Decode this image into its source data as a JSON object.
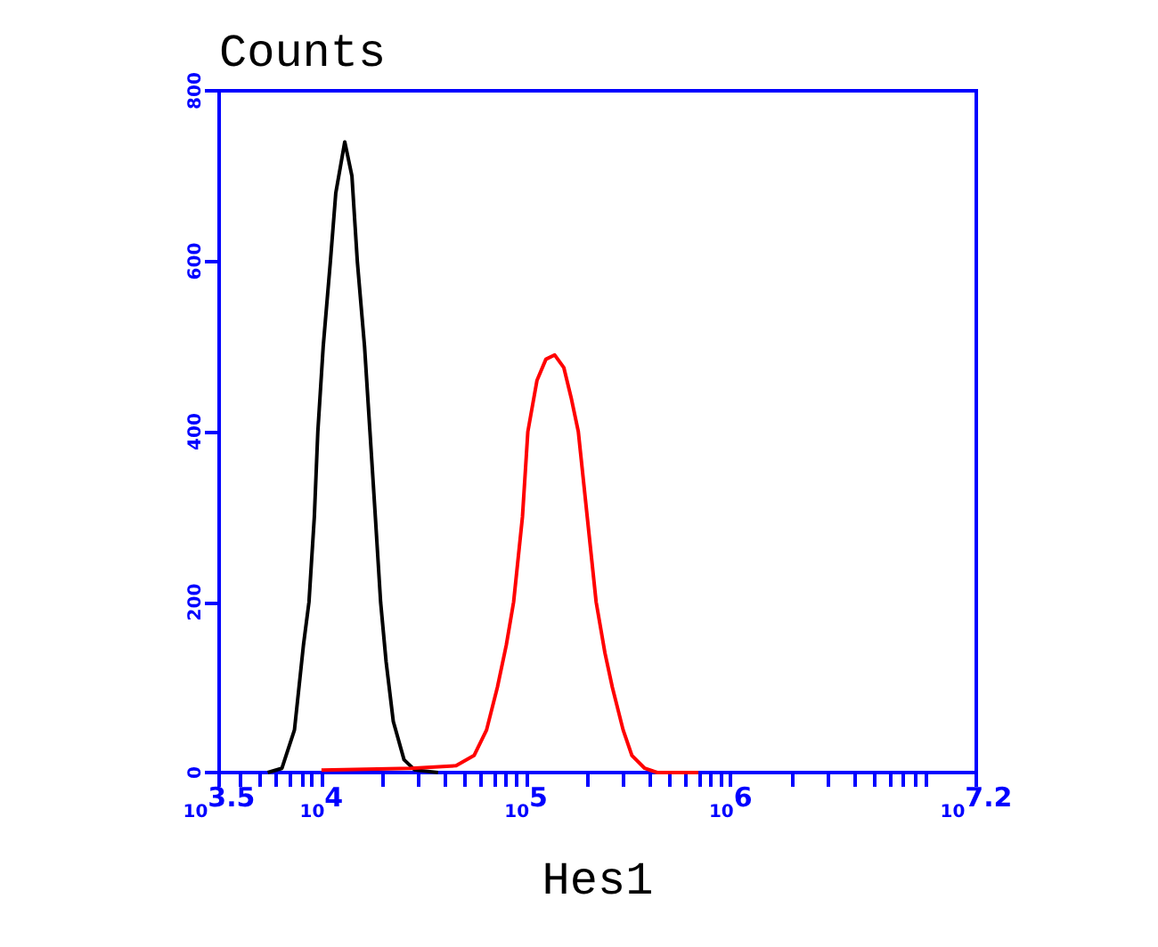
{
  "chart_data": {
    "type": "line",
    "ylabel": "Counts",
    "xlabel": "Hes1",
    "log": "x",
    "xlim": [
      3162,
      15850000
    ],
    "ylim": [
      0,
      800
    ],
    "yticks": [
      0,
      200,
      400,
      600,
      800
    ],
    "xticks": [
      {
        "value": 3162,
        "label": "10$^{3.5}$"
      },
      {
        "value": 4000,
        "label": null
      },
      {
        "value": 5000,
        "label": null
      },
      {
        "value": 6000,
        "label": null
      },
      {
        "value": 7000,
        "label": null
      },
      {
        "value": 8000,
        "label": null
      },
      {
        "value": 9000,
        "label": null
      },
      {
        "value": 10000,
        "label": "10$^{4}$"
      },
      {
        "value": 20000,
        "label": null
      },
      {
        "value": 30000,
        "label": null
      },
      {
        "value": 40000,
        "label": null
      },
      {
        "value": 50000,
        "label": null
      },
      {
        "value": 60000,
        "label": null
      },
      {
        "value": 70000,
        "label": null
      },
      {
        "value": 80000,
        "label": null
      },
      {
        "value": 90000,
        "label": null
      },
      {
        "value": 100000,
        "label": "10$^{5}$"
      },
      {
        "value": 200000,
        "label": null
      },
      {
        "value": 300000,
        "label": null
      },
      {
        "value": 400000,
        "label": null
      },
      {
        "value": 500000,
        "label": null
      },
      {
        "value": 600000,
        "label": null
      },
      {
        "value": 700000,
        "label": null
      },
      {
        "value": 800000,
        "label": null
      },
      {
        "value": 900000,
        "label": null
      },
      {
        "value": 1000000,
        "label": "10$^{6}$"
      },
      {
        "value": 2000000,
        "label": null
      },
      {
        "value": 3000000,
        "label": null
      },
      {
        "value": 4000000,
        "label": null
      },
      {
        "value": 5000000,
        "label": null
      },
      {
        "value": 6000000,
        "label": null
      },
      {
        "value": 7000000,
        "label": null
      },
      {
        "value": 8000000,
        "label": null
      },
      {
        "value": 9000000,
        "label": null
      },
      {
        "value": 15850000,
        "label": "10$^{7.2}$"
      }
    ],
    "grid": false,
    "marker": "none",
    "line_style": "solid",
    "series": [
      {
        "color": "#000000",
        "x": [
          5460,
          6410,
          7380,
          8170,
          8690,
          9230,
          9600,
          10200,
          11060,
          11750,
          13000,
          14090,
          14970,
          16240,
          17260,
          18340,
          19460,
          20700,
          22440,
          25330,
          28590,
          37150
        ],
        "values": [
          0,
          5,
          50,
          150,
          200,
          300,
          400,
          500,
          600,
          680,
          740,
          700,
          600,
          500,
          400,
          300,
          200,
          130,
          60,
          15,
          3,
          0
        ]
      },
      {
        "color": "#ff0000",
        "x": [
          10000,
          27480,
          45500,
          55700,
          64100,
          72400,
          80100,
          86900,
          96000,
          102000,
          113000,
          125000,
          138000,
          153000,
          166000,
          180000,
          199000,
          220000,
          243000,
          264000,
          298000,
          329000,
          380000,
          437000,
          695000
        ],
        "values": [
          3,
          5,
          8,
          20,
          50,
          100,
          150,
          200,
          300,
          400,
          460,
          485,
          490,
          475,
          440,
          400,
          300,
          200,
          140,
          100,
          50,
          20,
          5,
          0,
          0
        ]
      }
    ]
  }
}
